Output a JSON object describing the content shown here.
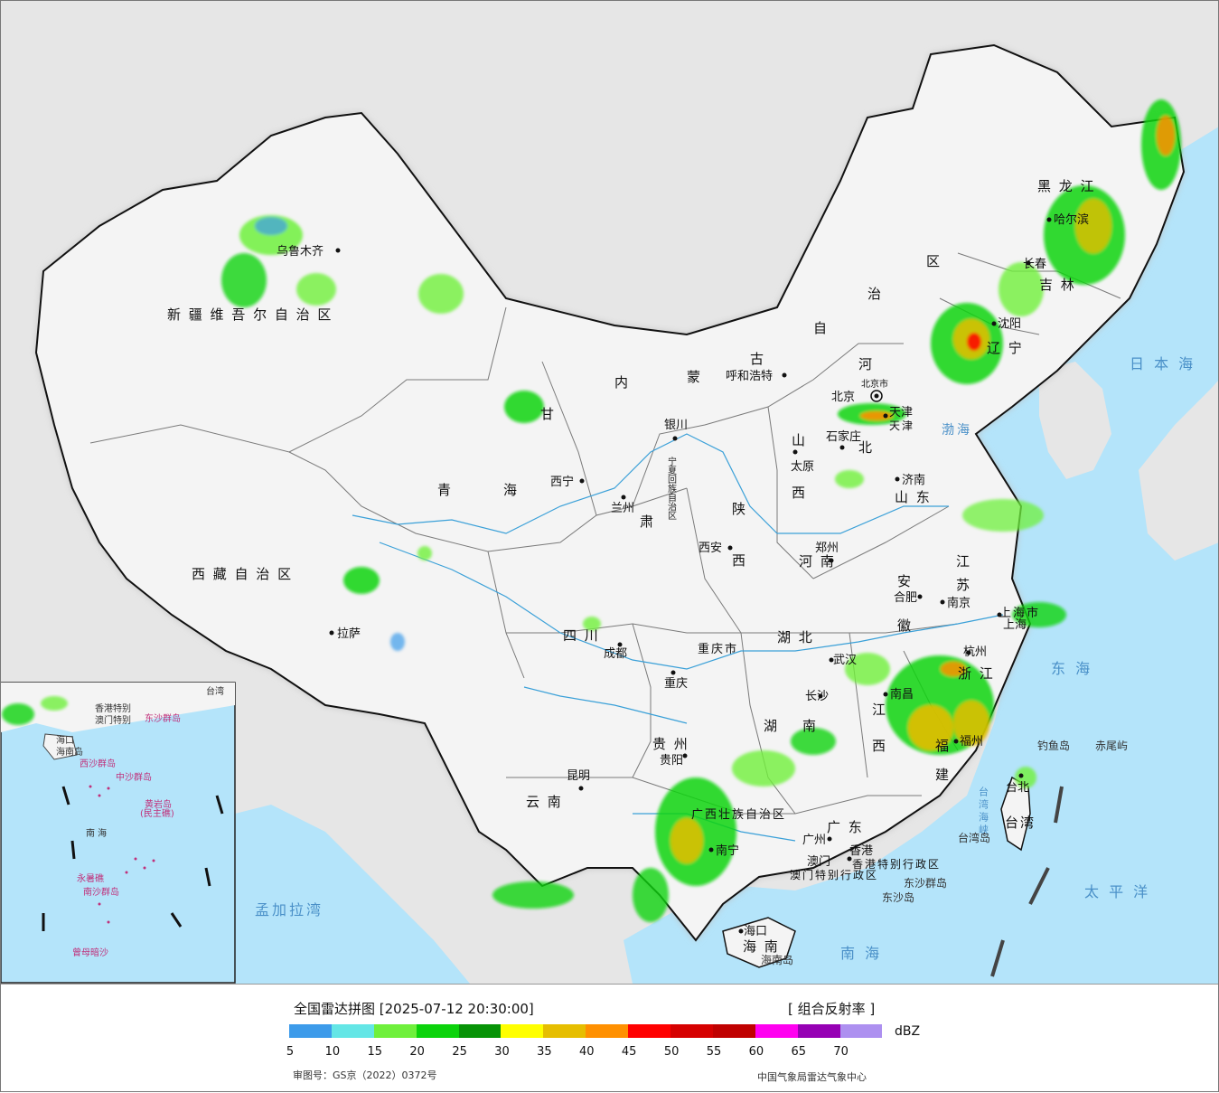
{
  "title": "全国雷达拼图 [2025-07-12 20:30:00]",
  "product": "[ 组合反射率 ]",
  "unit": "dBZ",
  "approval_number": "审图号：GS京（2022）0372号",
  "producer": "中国气象局雷达气象中心",
  "legend": {
    "colors": [
      "#3d9bea",
      "#64e6e6",
      "#6ff03c",
      "#0bd30b",
      "#079307",
      "#ffff00",
      "#e6be00",
      "#ff9000",
      "#ff0000",
      "#d60000",
      "#c00000",
      "#ff00f0",
      "#9600b4",
      "#ad90f0"
    ],
    "ticks": [
      "5",
      "10",
      "15",
      "20",
      "25",
      "30",
      "35",
      "40",
      "45",
      "50",
      "55",
      "60",
      "65",
      "70"
    ]
  },
  "provinces": {
    "xinjiang": "新 疆 维 吾 尔 自 治 区",
    "xizang": "西 藏 自 治 区",
    "qinghai_1": "青",
    "qinghai_2": "海",
    "gansu": "甘",
    "gansu_2": "肃",
    "nmg_1": "内",
    "nmg_2": "蒙",
    "nmg_3": "古",
    "nmg_4": "自",
    "nmg_5": "治",
    "nmg_6": "区",
    "ningxia": "宁夏回族自治区",
    "shaanxi_1": "陕",
    "shaanxi_2": "西",
    "shanxi_1": "山",
    "shanxi_2": "西",
    "hebei_1": "河",
    "hebei_2": "北",
    "shandong": "山 东",
    "henan": "河 南",
    "hubei": "湖  北",
    "hunan_1": "湖",
    "hunan_2": "南",
    "sichuan": "四  川",
    "chongqing": "重庆市",
    "guizhou": "贵  州",
    "yunnan": "云  南",
    "guangxi": "广西壮族自治区",
    "guangdong": "广  东",
    "jiangxi_1": "江",
    "jiangxi_2": "西",
    "fujian_1": "福",
    "fujian_2": "建",
    "zhejiang": "浙 江",
    "anhui_1": "安",
    "anhui_2": "徽",
    "jiangsu_1": "江",
    "jiangsu_2": "苏",
    "shanghai": "上海市",
    "heilongjiang": "黑  龙  江",
    "jilin": "吉  林",
    "liaoning": "辽  宁",
    "hainan": "海  南",
    "taiwan": "台湾",
    "hk": "香港特别行政区",
    "macau": "澳门特别行政区",
    "tianjin": "天津"
  },
  "cities": {
    "urumqi": "乌鲁木齐",
    "lhasa": "拉萨",
    "xining": "西宁",
    "lanzhou": "兰州",
    "yinchuan": "银川",
    "hohhot": "呼和浩特",
    "beijing": "北京",
    "beijing_city": "北京市",
    "tianjin": "天津",
    "shijiazhuang": "石家庄",
    "taiyuan": "太原",
    "jinan": "济南",
    "zhengzhou": "郑州",
    "xian": "西安",
    "chengdu": "成都",
    "chongqing": "重庆",
    "wuhan": "武汉",
    "hefei": "合肥",
    "nanjing": "南京",
    "shanghai": "上海",
    "hangzhou": "杭州",
    "nanchang": "南昌",
    "changsha": "长沙",
    "guiyang": "贵阳",
    "kunming": "昆明",
    "nanning": "南宁",
    "guangzhou": "广州",
    "hongkong": "香港",
    "macau": "澳门",
    "fuzhou": "福州",
    "taibei": "台北",
    "haikou": "海口",
    "harbin": "哈尔滨",
    "changchun": "长春",
    "shenyang": "沈阳"
  },
  "seas": {
    "bohai": "渤海",
    "sea_of_japan": "日 本 海",
    "east_china_sea": "东 海",
    "pacific": "太 平 洋",
    "south_china_sea": "南 海",
    "bay_of_bengal": "孟加拉湾",
    "taiwan_strait": "台湾海峡"
  },
  "islands": {
    "diaoyu": "钓鱼岛",
    "chiwei": "赤尾屿",
    "taiwan_island": "台湾岛",
    "hainan_island": "海南岛",
    "dongsha_qd": "东沙群岛",
    "dongsha_dao": "东沙岛"
  },
  "inset": {
    "south_sea": "南 海",
    "xisha": "西沙群岛",
    "zhongsha": "中沙群岛",
    "huangyan": "黄岩岛",
    "minzhu": "(民主礁)",
    "nansha": "南沙群岛",
    "yongshu": "永暑礁",
    "zengmu": "曾母暗沙",
    "haikou": "海口",
    "dongsha": "东沙群岛",
    "hk": "香港特别",
    "macau": "澳门特别",
    "taiwan": "台湾",
    "hainan": "海南岛"
  }
}
